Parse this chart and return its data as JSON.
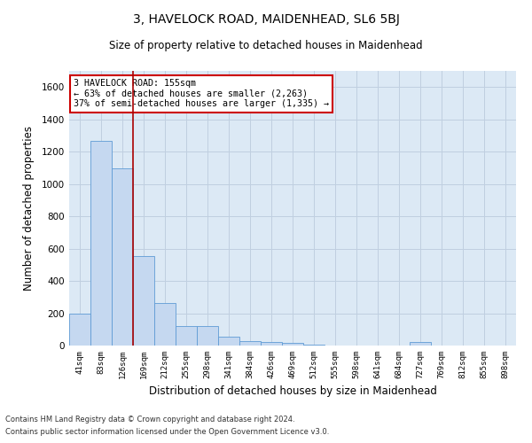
{
  "title": "3, HAVELOCK ROAD, MAIDENHEAD, SL6 5BJ",
  "subtitle": "Size of property relative to detached houses in Maidenhead",
  "xlabel": "Distribution of detached houses by size in Maidenhead",
  "ylabel": "Number of detached properties",
  "footnote1": "Contains HM Land Registry data © Crown copyright and database right 2024.",
  "footnote2": "Contains public sector information licensed under the Open Government Licence v3.0.",
  "bar_labels": [
    "41sqm",
    "83sqm",
    "126sqm",
    "169sqm",
    "212sqm",
    "255sqm",
    "298sqm",
    "341sqm",
    "384sqm",
    "426sqm",
    "469sqm",
    "512sqm",
    "555sqm",
    "598sqm",
    "641sqm",
    "684sqm",
    "727sqm",
    "769sqm",
    "812sqm",
    "855sqm",
    "898sqm"
  ],
  "bar_values": [
    195,
    1265,
    1095,
    555,
    265,
    120,
    120,
    55,
    30,
    20,
    15,
    5,
    0,
    0,
    0,
    0,
    20,
    0,
    0,
    0,
    0
  ],
  "bar_color": "#c5d8f0",
  "bar_edge_color": "#5f9bd5",
  "ylim": [
    0,
    1700
  ],
  "yticks": [
    0,
    200,
    400,
    600,
    800,
    1000,
    1200,
    1400,
    1600
  ],
  "vline_x": 2.5,
  "annotation_title": "3 HAVELOCK ROAD: 155sqm",
  "annotation_line1": "← 63% of detached houses are smaller (2,263)",
  "annotation_line2": "37% of semi-detached houses are larger (1,335) →",
  "annotation_box_color": "#ffffff",
  "annotation_box_edge_color": "#cc0000",
  "vline_color": "#aa0000",
  "grid_color": "#c0cfe0",
  "background_color": "#dce9f5",
  "fig_width": 6.0,
  "fig_height": 5.0,
  "dpi": 100
}
